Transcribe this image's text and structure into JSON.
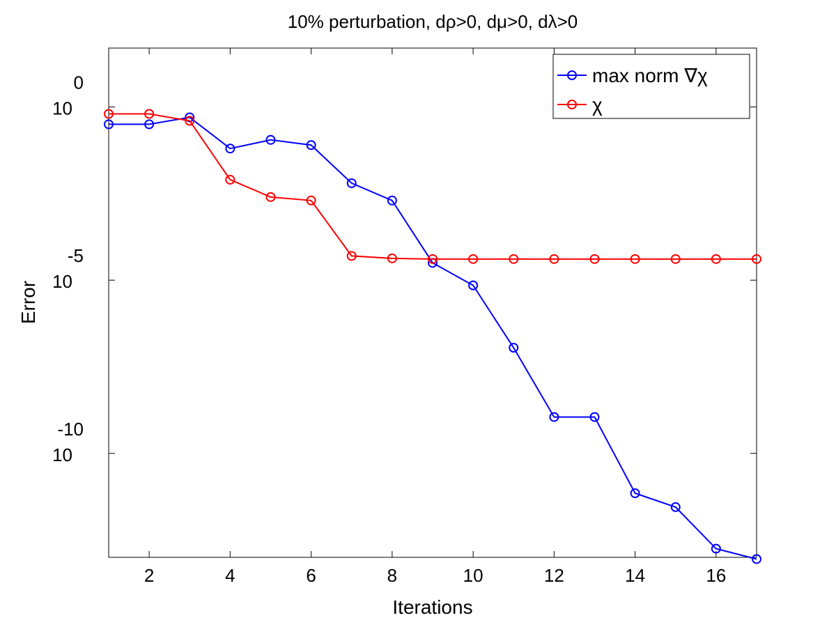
{
  "chart_data": {
    "type": "line",
    "title": "10% perturbation, dρ>0, dμ>0, dλ>0",
    "xlabel": "Iterations",
    "ylabel": "Error",
    "x": [
      1,
      2,
      3,
      4,
      5,
      6,
      7,
      8,
      9,
      10,
      11,
      12,
      13,
      14,
      15,
      16,
      17
    ],
    "xlim": [
      1,
      17
    ],
    "ylim": [
      -13,
      1.7
    ],
    "y_scale": "log10",
    "xticks": [
      2,
      4,
      6,
      8,
      10,
      12,
      14,
      16
    ],
    "xtick_labels": [
      "2",
      "4",
      "6",
      "8",
      "10",
      "12",
      "14",
      "16"
    ],
    "yticks": [
      {
        "value": 0,
        "base": "10",
        "exponent": "0"
      },
      {
        "value": -5,
        "base": "10",
        "exponent": "-5"
      },
      {
        "value": -10,
        "base": "10",
        "exponent": "-10"
      }
    ],
    "grid": false,
    "legend_position": "top-right",
    "series": [
      {
        "name": "max norm ∇χ",
        "color": "#0000ff",
        "marker": "circle",
        "values": [
          -0.5,
          -0.5,
          -0.3,
          -1.2,
          -0.95,
          -1.1,
          -2.2,
          -2.7,
          -4.5,
          -5.15,
          -6.95,
          -8.95,
          -8.95,
          -11.15,
          -11.55,
          -12.75,
          -13.05
        ]
      },
      {
        "name": "χ",
        "color": "#ff0000",
        "marker": "circle",
        "values": [
          -0.2,
          -0.2,
          -0.4,
          -2.1,
          -2.6,
          -2.7,
          -4.3,
          -4.37,
          -4.39,
          -4.39,
          -4.39,
          -4.39,
          -4.39,
          -4.39,
          -4.39,
          -4.39,
          -4.39
        ]
      }
    ]
  }
}
